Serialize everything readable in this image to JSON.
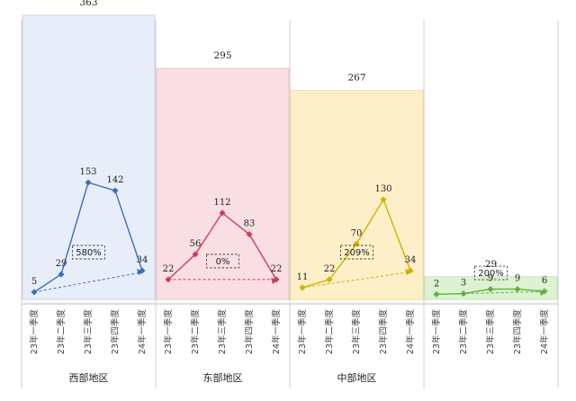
{
  "chart_data": {
    "type": "bar+line",
    "categories": [
      "23年一季度",
      "23年二季度",
      "23年三季度",
      "23年四季度",
      "24年一季度"
    ],
    "ylim": [
      0,
      370
    ],
    "grid": false,
    "legend": "none",
    "groups": [
      {
        "name": "西部地区",
        "total": 363,
        "total_label": "363",
        "values": [
          5,
          29,
          153,
          142,
          34
        ],
        "growth": "580%",
        "bar_color": "#e8eef9",
        "bar_stroke": "#c9d6ee",
        "line_color": "#3a6fb6"
      },
      {
        "name": "东部地区",
        "total": 295,
        "total_label": "295",
        "values": [
          22,
          56,
          112,
          83,
          22
        ],
        "growth": "0%",
        "bar_color": "#f9dfe3",
        "bar_stroke": "#f0c4cb",
        "line_color": "#cc3d5a"
      },
      {
        "name": "中部地区",
        "total": 267,
        "total_label": "267",
        "values": [
          11,
          22,
          70,
          130,
          34
        ],
        "growth": "209%",
        "bar_color": "#fdf0c8",
        "bar_stroke": "#f5e2a6",
        "line_color": "#cfb000"
      },
      {
        "name": "",
        "total": 29,
        "total_label": "29",
        "values": [
          2,
          3,
          9,
          9,
          6
        ],
        "growth": "200%",
        "bar_color": "#dcf2d2",
        "bar_stroke": "#c6e6b7",
        "line_color": "#5db33c"
      }
    ]
  }
}
